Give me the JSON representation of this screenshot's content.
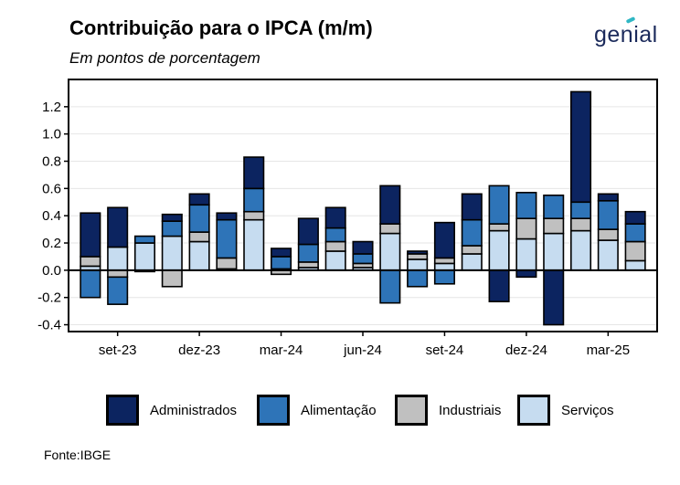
{
  "header": {
    "title": "Contribuição para o IPCA (m/m)",
    "subtitle": "Em pontos de porcentagem",
    "logo": "genial"
  },
  "footer": {
    "source": "Fonte:IBGE"
  },
  "colors": {
    "Administrados": "#0c2460",
    "Alimentação": "#2e74b8",
    "Industriais": "#c0c0c0",
    "Serviços": "#c6dcf0"
  },
  "chart_data": {
    "type": "bar",
    "stacked": true,
    "categories": [
      "ago-23",
      "set-23",
      "out-23",
      "nov-23",
      "dez-23",
      "jan-24",
      "fev-24",
      "mar-24",
      "abr-24",
      "mai-24",
      "jun-24",
      "jul-24",
      "ago-24",
      "set-24",
      "out-24",
      "nov-24",
      "dez-24",
      "jan-25",
      "fev-25",
      "mar-25",
      "abr-25"
    ],
    "x_tick_labels": [
      "set-23",
      "dez-23",
      "mar-24",
      "jun-24",
      "set-24",
      "dez-24",
      "mar-25"
    ],
    "x_tick_index": [
      1,
      4,
      7,
      10,
      13,
      16,
      19
    ],
    "series": [
      {
        "name": "Serviços",
        "values": [
          0.03,
          0.17,
          0.2,
          0.25,
          0.21,
          0.01,
          0.37,
          0.01,
          0.02,
          0.14,
          0.02,
          0.27,
          0.08,
          0.05,
          0.12,
          0.29,
          0.23,
          0.27,
          0.29,
          0.22,
          0.07
        ]
      },
      {
        "name": "Industriais",
        "values": [
          0.07,
          -0.05,
          -0.01,
          -0.12,
          0.07,
          0.08,
          0.06,
          -0.03,
          0.04,
          0.07,
          0.03,
          0.07,
          0.04,
          0.04,
          0.06,
          0.05,
          0.15,
          0.11,
          0.09,
          0.08,
          0.14
        ]
      },
      {
        "name": "Alimentação",
        "values": [
          -0.2,
          -0.2,
          0.05,
          0.11,
          0.2,
          0.28,
          0.17,
          0.09,
          0.13,
          0.1,
          0.07,
          -0.24,
          -0.12,
          -0.1,
          0.19,
          0.28,
          0.19,
          0.17,
          0.12,
          0.21,
          0.13
        ]
      },
      {
        "name": "Administrados",
        "values": [
          0.32,
          0.29,
          0.0,
          0.05,
          0.08,
          0.05,
          0.23,
          0.06,
          0.19,
          0.15,
          0.09,
          0.28,
          0.02,
          0.26,
          0.19,
          -0.23,
          -0.05,
          -0.4,
          0.81,
          0.05,
          0.09
        ]
      }
    ],
    "ylim": [
      -0.45,
      1.4
    ],
    "y_ticks": [
      -0.4,
      -0.2,
      0.0,
      0.2,
      0.4,
      0.6,
      0.8,
      1.0,
      1.2
    ],
    "y_tick_labels": [
      "-0.4",
      "-0.2",
      "0.0",
      "0.2",
      "0.4",
      "0.6",
      "0.8",
      "1.0",
      "1.2"
    ],
    "grid": true,
    "legend_position": "bottom"
  }
}
